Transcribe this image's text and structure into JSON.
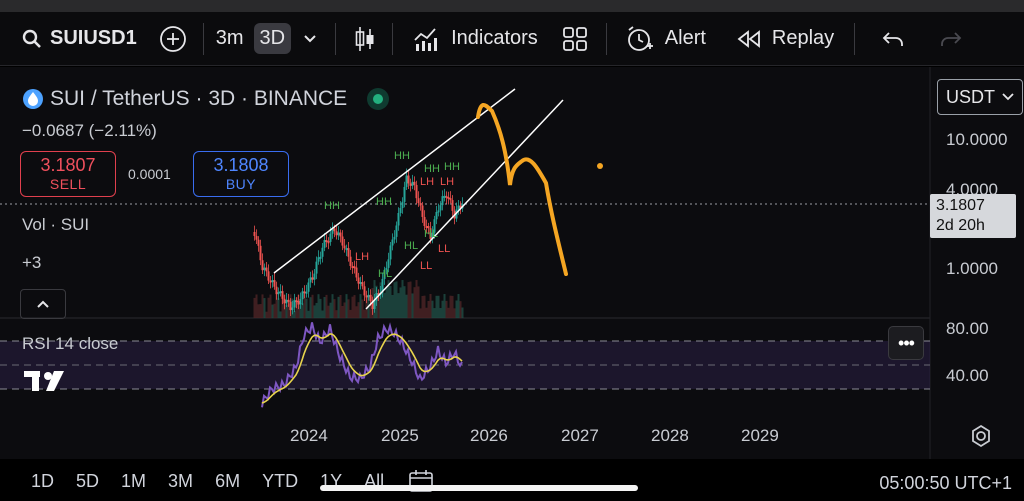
{
  "toolbar": {
    "symbol": "SUIUSD1",
    "interval_3m": "3m",
    "interval_3d": "3D",
    "indicators": "Indicators",
    "alert": "Alert",
    "replay": "Replay"
  },
  "legend": {
    "title": "SUI / TetherUS · 3D · BINANCE",
    "change": "−0.0687 (−2.11%)",
    "sell_price": "3.1807",
    "sell_label": "SELL",
    "spread": "0.0001",
    "buy_price": "3.1808",
    "buy_label": "BUY",
    "vol": "Vol · SUI",
    "more_indicators": "+3"
  },
  "price_scale": {
    "currency": "USDT",
    "labels": [
      "10.0000",
      "4.0000",
      "1.0000"
    ],
    "last_price": "3.1807",
    "countdown": "2d 20h"
  },
  "rsi": {
    "label": "RSI 14 close",
    "levels": [
      "80.00",
      "40.00"
    ]
  },
  "time_axis": [
    "2024",
    "2025",
    "2026",
    "2027",
    "2028",
    "2029"
  ],
  "markers": {
    "higher_high": "HH",
    "lower_high": "LH",
    "higher_low": "HL",
    "lower_low": "LL"
  },
  "bottom_bar": {
    "ranges": [
      "1D",
      "5D",
      "1M",
      "3M",
      "6M",
      "YTD",
      "1Y",
      "All"
    ],
    "clock": "05:00:50 UTC+1"
  },
  "colors": {
    "up": "#26a69a",
    "down": "#ef5350",
    "rsi_line": "#7e57c2",
    "rsi_signal": "#e8d44d",
    "drawing": "#f5a623",
    "sell": "#f0505d",
    "buy": "#4f86ff"
  }
}
